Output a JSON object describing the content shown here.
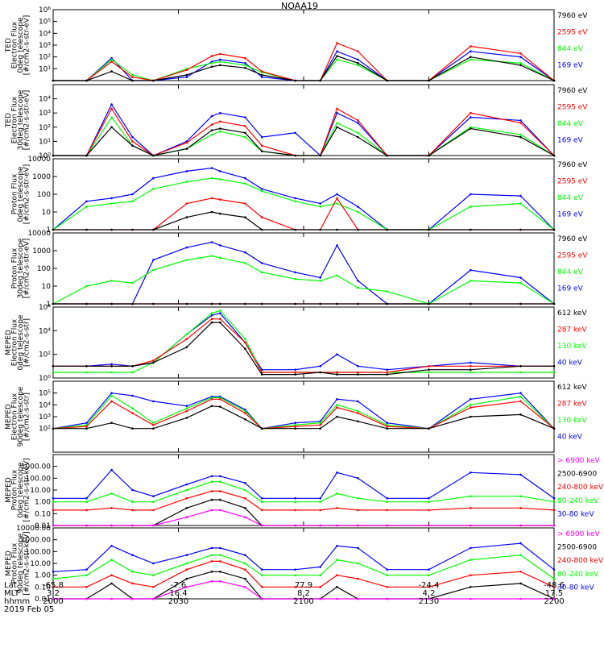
{
  "title": "NOAA19",
  "time_ticks": [
    "2000",
    "2030",
    "2100",
    "2130",
    "2200"
  ],
  "footer": {
    "row_labels": [
      "Lat",
      "MLT",
      "hhmm"
    ],
    "lat": [
      "-65.8",
      "-7.6",
      "77.9",
      "-24.4",
      "-48.6"
    ],
    "mlt": [
      "3.2",
      "16.4",
      "8.2",
      "4.2",
      "17.5"
    ],
    "hhmm": [
      "2000",
      "2030",
      "2100",
      "2130",
      "2200"
    ],
    "date": "2019 Feb 05"
  },
  "colors": {
    "black": "#000000",
    "red": "#ff0000",
    "green": "#00ff00",
    "blue": "#0000ff",
    "magenta": "#ff00ff"
  },
  "chart_data": [
    {
      "type": "line",
      "scale": "log",
      "ylim": [
        1,
        1000000
      ],
      "ylabel": [
        "TED",
        "Electron Flux",
        "0deg telescope",
        "[#/cm2-s-str-eV]"
      ],
      "yticks": [
        "10¹",
        "10²",
        "10³",
        "10⁴",
        "10⁵",
        "10⁶"
      ],
      "ytick_values": [
        10,
        100,
        1000,
        10000,
        100000,
        1000000
      ],
      "series": [
        {
          "name": "7960 eV",
          "color": "#000000"
        },
        {
          "name": "2595 eV",
          "color": "#ff0000"
        },
        {
          "name": "844 eV",
          "color": "#00ff00"
        },
        {
          "name": "169 eV",
          "color": "#0000ff"
        }
      ],
      "x": [
        0,
        4,
        7,
        9.5,
        12,
        16,
        19,
        20,
        23,
        25,
        29,
        32,
        34,
        36.5,
        40,
        45,
        50,
        56,
        60
      ],
      "values": [
        [
          1,
          1,
          6,
          1,
          1,
          3,
          15,
          20,
          12,
          3,
          1,
          1,
          120,
          30,
          1,
          1,
          100,
          20,
          1
        ],
        [
          1,
          1,
          40,
          2,
          1,
          8,
          120,
          180,
          80,
          6,
          1,
          1,
          1500,
          300,
          1,
          1,
          800,
          200,
          1
        ],
        [
          1,
          1,
          60,
          3,
          1,
          10,
          30,
          40,
          20,
          5,
          1,
          1,
          60,
          20,
          1,
          1,
          60,
          30,
          1
        ],
        [
          1,
          1,
          80,
          1,
          1,
          2,
          40,
          60,
          30,
          2,
          1,
          1,
          300,
          60,
          1,
          1,
          300,
          100,
          1
        ]
      ]
    },
    {
      "type": "line",
      "scale": "log",
      "ylim": [
        1,
        100000
      ],
      "ylabel": [
        "TED",
        "Electron Flux",
        "30deg telescope",
        "[#/cm2-s-str-eV]"
      ],
      "yticks": [
        "10⁰",
        "10¹",
        "10²",
        "10³",
        "10⁴"
      ],
      "ytick_values": [
        1,
        10,
        100,
        1000,
        10000
      ],
      "series": [
        {
          "name": "7960 eV",
          "color": "#000000"
        },
        {
          "name": "2595 eV",
          "color": "#ff0000"
        },
        {
          "name": "844 eV",
          "color": "#00ff00"
        },
        {
          "name": "169 eV",
          "color": "#0000ff"
        }
      ],
      "x": [
        0,
        4,
        7,
        9.5,
        12,
        16,
        19,
        20,
        23,
        25,
        29,
        32,
        34,
        36.5,
        40,
        45,
        50,
        56,
        60
      ],
      "values": [
        [
          1,
          1,
          100,
          5,
          1,
          3,
          60,
          80,
          40,
          2,
          1,
          1,
          100,
          20,
          1,
          1,
          80,
          20,
          1
        ],
        [
          1,
          1,
          2000,
          10,
          1,
          8,
          150,
          250,
          120,
          5,
          1,
          1,
          2000,
          300,
          1,
          1,
          1000,
          200,
          1
        ],
        [
          1,
          1,
          500,
          5,
          1,
          3,
          30,
          50,
          20,
          2,
          1,
          1,
          200,
          40,
          1,
          1,
          100,
          30,
          1
        ],
        [
          1,
          1,
          4000,
          20,
          1,
          10,
          600,
          1000,
          500,
          20,
          40,
          1,
          1000,
          200,
          1,
          1,
          500,
          300,
          1
        ]
      ]
    },
    {
      "type": "line",
      "scale": "log",
      "ylim": [
        1,
        10000
      ],
      "ylabel": [
        "Proton Flux",
        "0deg telescope",
        "[#/cm2-s-str-eV]"
      ],
      "yticks": [
        "1",
        "10",
        "100",
        "1000",
        "10000"
      ],
      "ytick_values": [
        1,
        10,
        100,
        1000,
        10000
      ],
      "series": [
        {
          "name": "7960 eV",
          "color": "#000000"
        },
        {
          "name": "2595 eV",
          "color": "#ff0000"
        },
        {
          "name": "844 eV",
          "color": "#00ff00"
        },
        {
          "name": "169 eV",
          "color": "#0000ff"
        }
      ],
      "x": [
        0,
        4,
        7,
        9.5,
        12,
        16,
        19,
        20,
        23,
        25,
        29,
        32,
        34,
        36.5,
        40,
        45,
        50,
        56,
        60
      ],
      "values": [
        [
          1,
          1,
          1,
          1,
          1,
          5,
          10,
          8,
          5,
          1,
          1,
          1,
          1,
          1,
          1,
          1,
          1,
          1,
          1
        ],
        [
          1,
          1,
          1,
          1,
          1,
          30,
          60,
          50,
          30,
          5,
          1,
          1,
          60,
          1,
          1,
          1,
          1,
          1,
          1
        ],
        [
          1,
          20,
          30,
          40,
          200,
          500,
          800,
          700,
          400,
          150,
          40,
          20,
          30,
          10,
          1,
          1,
          20,
          30,
          1
        ],
        [
          1,
          40,
          60,
          100,
          800,
          2000,
          3000,
          2000,
          800,
          200,
          60,
          30,
          100,
          20,
          1,
          1,
          100,
          80,
          1
        ]
      ]
    },
    {
      "type": "line",
      "scale": "log",
      "ylim": [
        1,
        10000
      ],
      "ylabel": [
        "Proton Flux",
        "30deg telescope",
        "[#/cm2-s-str-eV]"
      ],
      "yticks": [
        "1",
        "10",
        "100",
        "1000",
        "10000"
      ],
      "ytick_values": [
        1,
        10,
        100,
        1000,
        10000
      ],
      "series": [
        {
          "name": "7960 eV",
          "color": "#000000"
        },
        {
          "name": "2595 eV",
          "color": "#ff0000"
        },
        {
          "name": "844 eV",
          "color": "#00ff00"
        },
        {
          "name": "169 eV",
          "color": "#0000ff"
        }
      ],
      "x": [
        0,
        4,
        7,
        9.5,
        12,
        16,
        19,
        20,
        23,
        25,
        29,
        32,
        34,
        36.5,
        40,
        45,
        50,
        56,
        60
      ],
      "values": [
        [
          1,
          1,
          1,
          1,
          1,
          1,
          1,
          1,
          1,
          1,
          1,
          1,
          1,
          1,
          1,
          1,
          1,
          1,
          1
        ],
        [
          1,
          1,
          1,
          1,
          1,
          1,
          1,
          1,
          1,
          1,
          1,
          1,
          1,
          1,
          1,
          1,
          1,
          1,
          1
        ],
        [
          1,
          10,
          20,
          15,
          80,
          300,
          500,
          400,
          200,
          60,
          25,
          20,
          40,
          8,
          5,
          1,
          20,
          15,
          1
        ],
        [
          1,
          1,
          1,
          1,
          300,
          1500,
          3000,
          2000,
          800,
          200,
          60,
          30,
          2000,
          20,
          1,
          1,
          80,
          30,
          1
        ]
      ]
    },
    {
      "type": "line",
      "scale": "log",
      "ylim": [
        1,
        1000000
      ],
      "ylabel": [
        "MEPED",
        "Electron Flux",
        "0deg telescope",
        "[#/cm2-s-str]"
      ],
      "yticks": [
        "10⁰",
        "10²",
        "10⁴",
        "10⁶"
      ],
      "ytick_values": [
        1,
        100,
        10000,
        1000000
      ],
      "series": [
        {
          "name": "612 keV",
          "color": "#000000"
        },
        {
          "name": "287 keV",
          "color": "#ff0000"
        },
        {
          "name": "130 keV",
          "color": "#00ff00"
        },
        {
          "name": "40 keV",
          "color": "#0000ff"
        }
      ],
      "x": [
        0,
        4,
        7,
        9.5,
        12,
        16,
        19,
        20,
        23,
        25,
        29,
        32,
        34,
        36.5,
        40,
        45,
        50,
        56,
        60
      ],
      "values": [
        [
          10,
          10,
          10,
          10,
          20,
          400,
          50000,
          50000,
          300,
          2,
          2,
          3,
          2,
          2,
          2,
          5,
          5,
          10,
          10
        ],
        [
          10,
          10,
          10,
          10,
          30,
          2000,
          100000,
          100000,
          1000,
          3,
          3,
          3,
          3,
          3,
          3,
          10,
          10,
          10,
          10
        ],
        [
          3,
          3,
          3,
          3,
          20,
          5000,
          300000,
          500000,
          2000,
          3,
          3,
          3,
          3,
          3,
          3,
          3,
          3,
          3,
          3
        ],
        [
          10,
          10,
          15,
          10,
          20,
          5000,
          200000,
          300000,
          1000,
          5,
          5,
          10,
          100,
          10,
          5,
          10,
          20,
          10,
          10
        ]
      ]
    },
    {
      "type": "line",
      "scale": "log",
      "ylim": [
        1,
        1000000
      ],
      "ylabel": [
        "MEPED",
        "Electron Flux",
        "90deg telescope",
        "[#/cm2-s-str]"
      ],
      "yticks": [
        "10²",
        "10³",
        "10⁴",
        "10⁵"
      ],
      "ytick_values": [
        100,
        1000,
        10000,
        100000
      ],
      "series": [
        {
          "name": "612 keV",
          "color": "#000000"
        },
        {
          "name": "287 keV",
          "color": "#ff0000"
        },
        {
          "name": "130 keV",
          "color": "#00ff00"
        },
        {
          "name": "40 keV",
          "color": "#0000ff"
        }
      ],
      "x": [
        0,
        4,
        7,
        9.5,
        12,
        16,
        19,
        20,
        23,
        25,
        29,
        32,
        34,
        36.5,
        40,
        45,
        50,
        56,
        60
      ],
      "values": [
        [
          100,
          100,
          300,
          100,
          100,
          800,
          8000,
          7000,
          600,
          100,
          100,
          100,
          1000,
          400,
          100,
          100,
          1000,
          1500,
          100
        ],
        [
          100,
          150,
          20000,
          2000,
          200,
          3000,
          30000,
          30000,
          2000,
          100,
          150,
          200,
          6000,
          2000,
          150,
          100,
          6000,
          20000,
          100
        ],
        [
          100,
          200,
          60000,
          5000,
          300,
          5000,
          40000,
          40000,
          3000,
          100,
          200,
          300,
          10000,
          3000,
          200,
          100,
          10000,
          50000,
          100
        ],
        [
          100,
          300,
          100000,
          60000,
          20000,
          8000,
          50000,
          50000,
          4000,
          100,
          300,
          400,
          30000,
          20000,
          300,
          100,
          30000,
          100000,
          100
        ]
      ]
    },
    {
      "type": "line",
      "scale": "log",
      "ylim": [
        0.01,
        10000
      ],
      "ylabel": [
        "MEPED",
        "Proton Flux",
        "0deg telescope",
        "[#/cm2-s-str-keV]"
      ],
      "yticks": [
        "0.01",
        "0.10",
        "1.00",
        "10.00",
        "100.00",
        "1000.00"
      ],
      "ytick_values": [
        0.01,
        0.1,
        1,
        10,
        100,
        1000
      ],
      "series": [
        {
          "name": "> 6900 keV",
          "color": "#ff00ff"
        },
        {
          "name": "2500-6900",
          "color": "#000000"
        },
        {
          "name": "240-800 keV",
          "color": "#ff0000"
        },
        {
          "name": "80-240 keV",
          "color": "#00ff00"
        },
        {
          "name": "30-80 keV",
          "color": "#0000ff"
        }
      ],
      "x": [
        0,
        4,
        7,
        9.5,
        12,
        16,
        19,
        20,
        23,
        25,
        29,
        32,
        34,
        36.5,
        40,
        45,
        50,
        56,
        60
      ],
      "values": [
        [
          0.01,
          0.01,
          0.01,
          0.01,
          0.01,
          0.05,
          0.2,
          0.2,
          0.05,
          0.01,
          0.01,
          0.01,
          0.01,
          0.01,
          0.01,
          0.01,
          0.01,
          0.01,
          0.01
        ],
        [
          0.01,
          0.01,
          0.01,
          0.01,
          0.01,
          0.3,
          1.5,
          1.5,
          0.3,
          0.01,
          0.01,
          0.01,
          0.01,
          0.01,
          0.01,
          0.01,
          0.01,
          0.01,
          0.01
        ],
        [
          0.2,
          0.2,
          0.3,
          0.2,
          0.2,
          2,
          8,
          8,
          2,
          0.2,
          0.2,
          0.2,
          0.3,
          0.2,
          0.2,
          0.2,
          0.3,
          0.3,
          0.2
        ],
        [
          1,
          1,
          5,
          1,
          1,
          10,
          50,
          50,
          10,
          1,
          1,
          1,
          5,
          2,
          1,
          1,
          3,
          3,
          1
        ],
        [
          2,
          2,
          500,
          10,
          3,
          30,
          150,
          150,
          40,
          2,
          2,
          2,
          300,
          100,
          2,
          2,
          300,
          200,
          2
        ]
      ]
    },
    {
      "type": "line",
      "scale": "log",
      "ylim": [
        0.01,
        10000
      ],
      "ylabel": [
        "MEPED",
        "Proton Flux",
        "90deg telescope",
        "[#/cm2-s-str-keV]"
      ],
      "yticks": [
        "0.01",
        "0.10",
        "1.00",
        "10.00",
        "100.00",
        "1000.00",
        "10000.00"
      ],
      "ytick_values": [
        0.01,
        0.1,
        1,
        10,
        100,
        1000,
        10000
      ],
      "series": [
        {
          "name": "> 6900 keV",
          "color": "#ff00ff"
        },
        {
          "name": "2500-6900",
          "color": "#000000"
        },
        {
          "name": "240-800 keV",
          "color": "#ff0000"
        },
        {
          "name": "80-240 keV",
          "color": "#00ff00"
        },
        {
          "name": "30-80 keV",
          "color": "#0000ff"
        }
      ],
      "x": [
        0,
        4,
        7,
        9.5,
        12,
        16,
        19,
        20,
        23,
        25,
        29,
        32,
        34,
        36.5,
        40,
        45,
        50,
        56,
        60
      ],
      "values": [
        [
          0.01,
          0.01,
          0.01,
          0.01,
          0.01,
          0.1,
          0.3,
          0.3,
          0.1,
          0.01,
          0.01,
          0.01,
          0.01,
          0.01,
          0.01,
          0.01,
          0.01,
          0.01,
          0.01
        ],
        [
          0.01,
          0.01,
          0.2,
          0.01,
          0.01,
          0.5,
          2,
          2,
          0.5,
          0.01,
          0.01,
          0.01,
          0.1,
          0.01,
          0.01,
          0.01,
          0.1,
          0.2,
          0.01
        ],
        [
          0.1,
          0.1,
          1,
          0.2,
          0.1,
          3,
          15,
          15,
          3,
          0.1,
          0.1,
          0.1,
          1,
          0.5,
          0.1,
          0.1,
          1,
          2,
          0.1
        ],
        [
          0.5,
          1,
          20,
          2,
          1,
          10,
          50,
          50,
          10,
          1,
          1,
          1,
          20,
          10,
          1,
          1,
          20,
          50,
          0.5
        ],
        [
          2,
          3,
          300,
          50,
          10,
          50,
          200,
          200,
          50,
          3,
          3,
          5,
          300,
          200,
          3,
          3,
          200,
          500,
          3
        ]
      ]
    }
  ]
}
